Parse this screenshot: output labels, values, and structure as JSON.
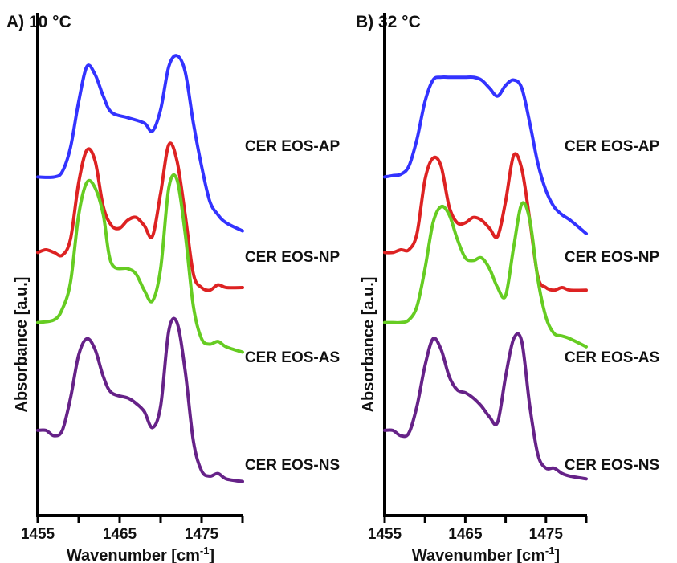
{
  "chart_data": [
    {
      "type": "line",
      "panel_label": "A) 10 °C",
      "xlabel": "Wavenumber [cm",
      "xlabel_sup": "-1",
      "xlabel_end": "]",
      "ylabel": "Absorbance [a.u.]",
      "xlim": [
        1455,
        1480
      ],
      "xticks": [
        1455,
        1460,
        1465,
        1470,
        1475,
        1480
      ],
      "xtick_labels": [
        "1455",
        "",
        "1465",
        "",
        "1475",
        ""
      ],
      "series": [
        {
          "name": "CER EOS-AP",
          "color": "#3333ff",
          "x": [
            1455,
            1457,
            1458,
            1459,
            1460,
            1461,
            1462,
            1463,
            1464,
            1466,
            1468,
            1469,
            1470,
            1471,
            1472,
            1473,
            1474,
            1475,
            1476,
            1477,
            1478,
            1480
          ],
          "y": [
            0.54,
            0.54,
            0.56,
            0.65,
            0.82,
            0.95,
            0.92,
            0.84,
            0.78,
            0.76,
            0.74,
            0.71,
            0.79,
            0.95,
            0.99,
            0.93,
            0.74,
            0.58,
            0.45,
            0.4,
            0.37,
            0.34
          ]
        },
        {
          "name": "CER EOS-NP",
          "color": "#dd2222",
          "x": [
            1455,
            1456,
            1457,
            1458,
            1459,
            1460,
            1461,
            1462,
            1463,
            1464,
            1465,
            1466,
            1467,
            1468,
            1469,
            1470,
            1471,
            1472,
            1473,
            1474,
            1475,
            1476,
            1477,
            1478,
            1480
          ],
          "y": [
            0.26,
            0.27,
            0.26,
            0.25,
            0.31,
            0.52,
            0.64,
            0.6,
            0.43,
            0.36,
            0.35,
            0.38,
            0.39,
            0.36,
            0.32,
            0.48,
            0.66,
            0.6,
            0.4,
            0.18,
            0.13,
            0.12,
            0.14,
            0.13,
            0.13
          ]
        },
        {
          "name": "CER EOS-AS",
          "color": "#66cc22",
          "x": [
            1455,
            1457,
            1458,
            1459,
            1460,
            1461,
            1462,
            1463,
            1464,
            1466,
            1467,
            1468,
            1469,
            1470,
            1471,
            1472,
            1473,
            1474,
            1475,
            1476,
            1477,
            1478,
            1480
          ],
          "y": [
            0.0,
            0.01,
            0.05,
            0.15,
            0.4,
            0.52,
            0.5,
            0.4,
            0.22,
            0.2,
            0.18,
            0.12,
            0.08,
            0.2,
            0.5,
            0.53,
            0.33,
            0.06,
            -0.06,
            -0.08,
            -0.07,
            -0.09,
            -0.11
          ]
        },
        {
          "name": "CER EOS-NS",
          "color": "#662288",
          "x": [
            1455,
            1456,
            1457,
            1458,
            1459,
            1460,
            1461,
            1462,
            1463,
            1464,
            1466,
            1467,
            1468,
            1469,
            1470,
            1471,
            1472,
            1473,
            1474,
            1475,
            1476,
            1477,
            1478,
            1480
          ],
          "y": [
            -0.4,
            -0.4,
            -0.42,
            -0.4,
            -0.28,
            -0.12,
            -0.06,
            -0.1,
            -0.2,
            -0.26,
            -0.28,
            -0.3,
            -0.33,
            -0.39,
            -0.31,
            -0.03,
            0.0,
            -0.18,
            -0.44,
            -0.55,
            -0.57,
            -0.56,
            -0.58,
            -0.59
          ]
        }
      ]
    },
    {
      "type": "line",
      "panel_label": "B) 32 °C",
      "xlabel": "Wavenumber [cm",
      "xlabel_sup": "-1",
      "xlabel_end": "]",
      "ylabel": "Absorbance [a.u.]",
      "xlim": [
        1455,
        1480
      ],
      "xticks": [
        1455,
        1460,
        1465,
        1470,
        1475,
        1480
      ],
      "xtick_labels": [
        "1455",
        "",
        "1465",
        "",
        "1475",
        ""
      ],
      "series": [
        {
          "name": "CER EOS-AP",
          "color": "#3333ff",
          "x": [
            1455,
            1456,
            1457,
            1458,
            1459,
            1460,
            1461,
            1462,
            1463,
            1464,
            1465,
            1466,
            1467,
            1468,
            1469,
            1470,
            1471,
            1472,
            1473,
            1474,
            1475,
            1476,
            1477,
            1478,
            1480
          ],
          "y": [
            0.54,
            0.545,
            0.55,
            0.58,
            0.68,
            0.82,
            0.9,
            0.91,
            0.91,
            0.91,
            0.91,
            0.91,
            0.9,
            0.87,
            0.84,
            0.88,
            0.9,
            0.87,
            0.74,
            0.59,
            0.49,
            0.43,
            0.4,
            0.38,
            0.33
          ]
        },
        {
          "name": "CER EOS-NP",
          "color": "#dd2222",
          "x": [
            1455,
            1456,
            1457,
            1458,
            1459,
            1460,
            1461,
            1462,
            1463,
            1464,
            1465,
            1466,
            1467,
            1468,
            1469,
            1470,
            1471,
            1472,
            1473,
            1474,
            1475,
            1476,
            1477,
            1478,
            1480
          ],
          "y": [
            0.26,
            0.26,
            0.27,
            0.27,
            0.33,
            0.53,
            0.61,
            0.58,
            0.43,
            0.37,
            0.37,
            0.39,
            0.38,
            0.35,
            0.32,
            0.45,
            0.62,
            0.57,
            0.38,
            0.17,
            0.13,
            0.12,
            0.13,
            0.12,
            0.12
          ]
        },
        {
          "name": "CER EOS-AS",
          "color": "#66cc22",
          "x": [
            1455,
            1456,
            1457,
            1458,
            1459,
            1460,
            1461,
            1462,
            1463,
            1464,
            1465,
            1466,
            1467,
            1468,
            1469,
            1470,
            1471,
            1472,
            1473,
            1474,
            1475,
            1476,
            1477,
            1478,
            1480
          ],
          "y": [
            0.0,
            0.0,
            0.0,
            0.01,
            0.06,
            0.2,
            0.37,
            0.43,
            0.4,
            0.31,
            0.24,
            0.23,
            0.24,
            0.2,
            0.13,
            0.1,
            0.28,
            0.44,
            0.38,
            0.16,
            0.02,
            -0.04,
            -0.05,
            -0.06,
            -0.09
          ]
        },
        {
          "name": "CER EOS-NS",
          "color": "#662288",
          "x": [
            1455,
            1456,
            1457,
            1458,
            1459,
            1460,
            1461,
            1462,
            1463,
            1464,
            1465,
            1466,
            1467,
            1468,
            1469,
            1470,
            1471,
            1472,
            1473,
            1474,
            1475,
            1476,
            1477,
            1478,
            1480
          ],
          "y": [
            -0.4,
            -0.4,
            -0.42,
            -0.41,
            -0.31,
            -0.16,
            -0.06,
            -0.1,
            -0.2,
            -0.25,
            -0.26,
            -0.28,
            -0.31,
            -0.35,
            -0.37,
            -0.2,
            -0.06,
            -0.07,
            -0.31,
            -0.49,
            -0.54,
            -0.54,
            -0.56,
            -0.57,
            -0.58
          ]
        }
      ]
    }
  ]
}
